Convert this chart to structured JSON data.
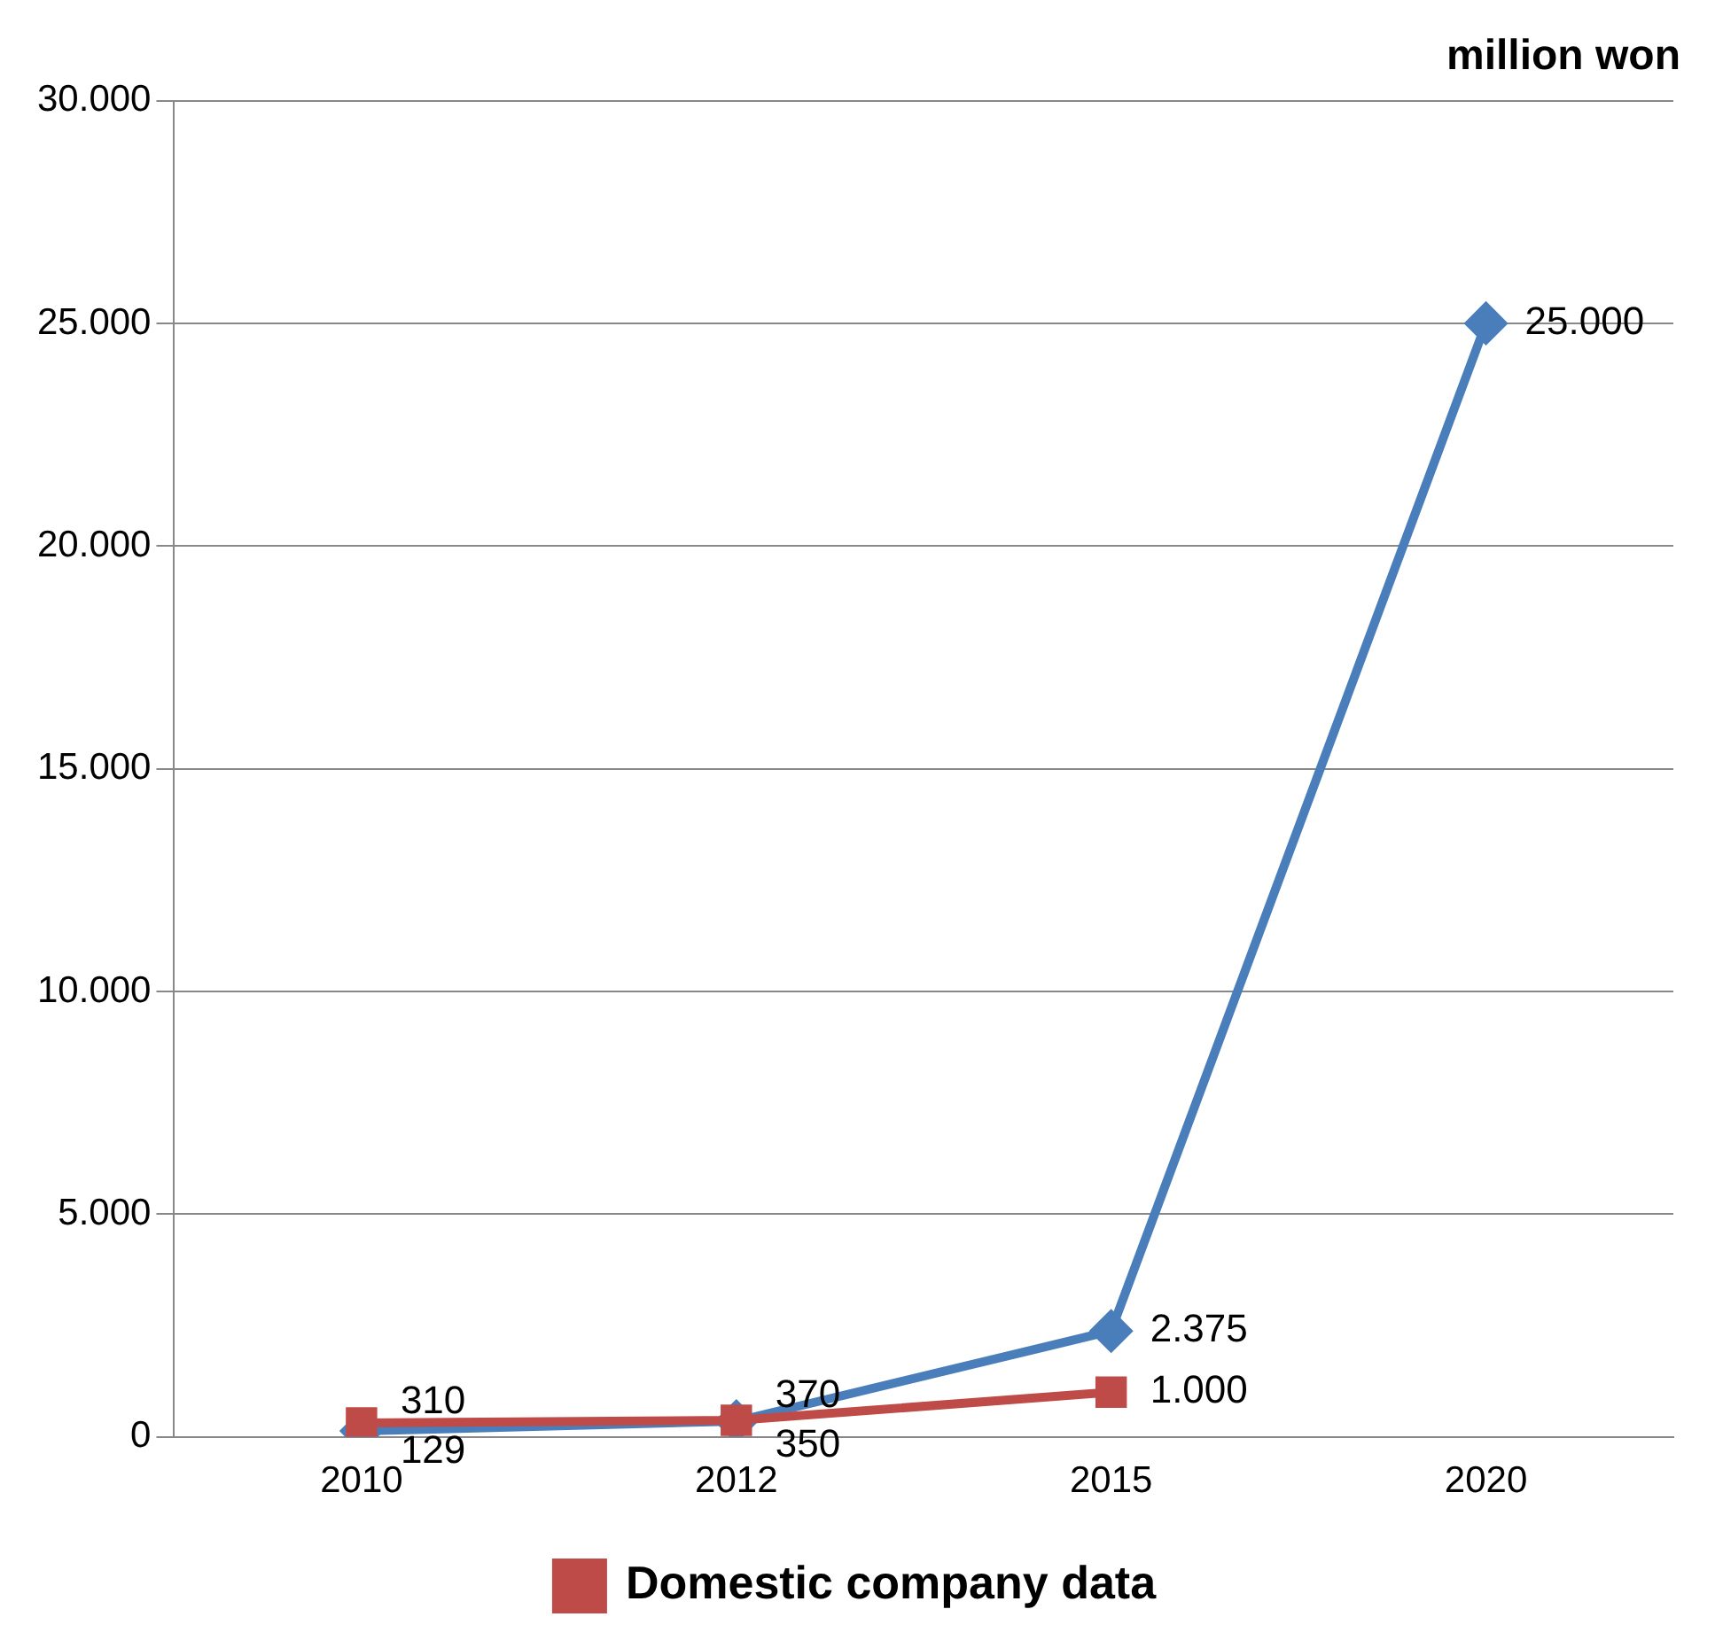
{
  "chart_data": {
    "type": "line",
    "title": "million won",
    "categories": [
      "2010",
      "2012",
      "2015",
      "2020"
    ],
    "series": [
      {
        "color": "#4a7ebb",
        "values": [
          129,
          350,
          2375,
          25000
        ],
        "marker": "diamond",
        "value_labels": [
          "129",
          "350",
          "2.375",
          "25.000"
        ]
      },
      {
        "name": "Domestic company data",
        "color": "#be4b48",
        "values": [
          310,
          370,
          1000,
          null
        ],
        "marker": "square",
        "value_labels": [
          "310",
          "370",
          "1.000",
          null
        ]
      }
    ],
    "ylim": [
      0,
      30000
    ],
    "yticks": [
      {
        "value": 0,
        "label": "0"
      },
      {
        "value": 5000,
        "label": "5.000"
      },
      {
        "value": 10000,
        "label": "10.000"
      },
      {
        "value": 15000,
        "label": "15.000"
      },
      {
        "value": 20000,
        "label": "20.000"
      },
      {
        "value": 25000,
        "label": "25.000"
      },
      {
        "value": 30000,
        "label": "30.000"
      }
    ],
    "grid": "y",
    "legend": "bottom",
    "line_style": "solid"
  }
}
